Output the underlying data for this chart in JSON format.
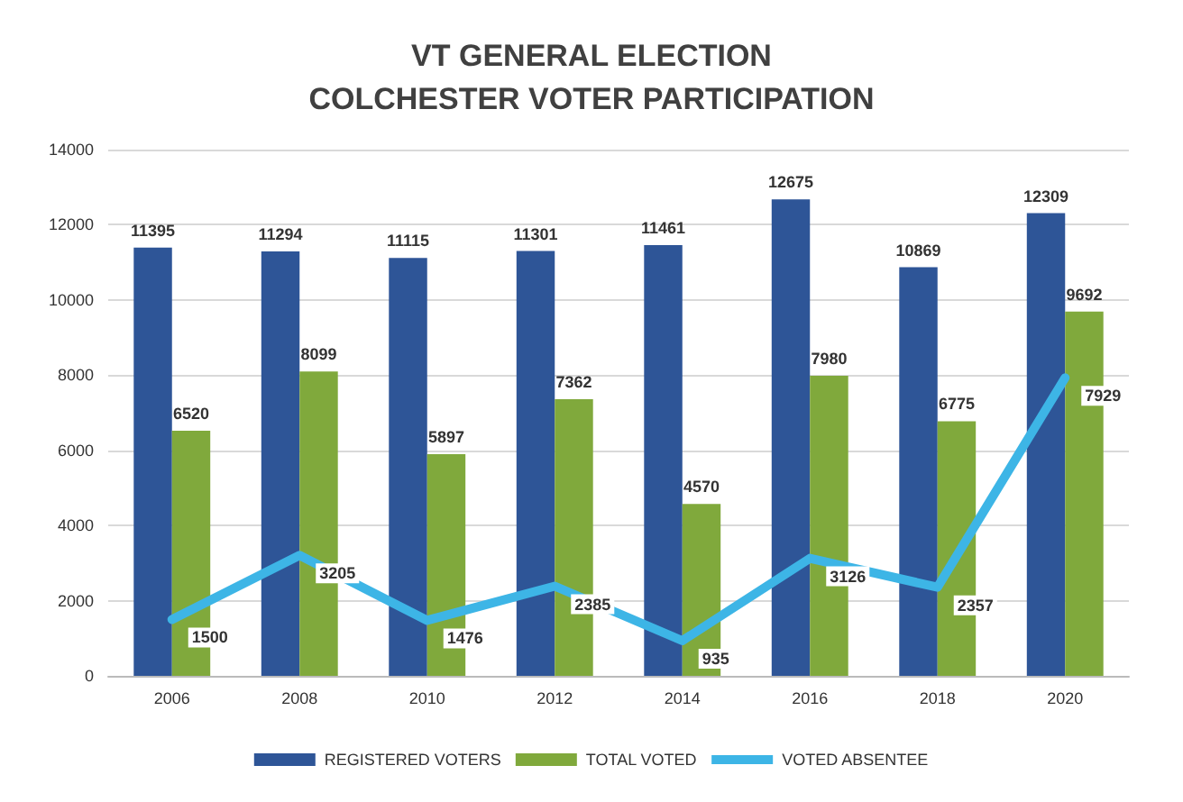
{
  "chart_data": {
    "type": "bar",
    "title": "VT GENERAL ELECTION\nCOLCHESTER VOTER PARTICIPATION",
    "categories": [
      "2006",
      "2008",
      "2010",
      "2012",
      "2014",
      "2016",
      "2018",
      "2020"
    ],
    "series": [
      {
        "name": "REGISTERED VOTERS",
        "color": "#2e5597",
        "values": [
          11395,
          11294,
          11115,
          11301,
          11461,
          12675,
          10869,
          12309
        ]
      },
      {
        "name": "TOTAL VOTED",
        "color": "#80a93c",
        "values": [
          6520,
          8099,
          5897,
          7362,
          4570,
          7980,
          6775,
          9692
        ]
      },
      {
        "name": "VOTED ABSENTEE",
        "type": "line",
        "color": "#3db5e6",
        "values": [
          1500,
          3205,
          1476,
          2385,
          935,
          3126,
          2357,
          7929
        ]
      }
    ],
    "ylim": [
      0,
      14000
    ],
    "yticks": [
      0,
      2000,
      4000,
      6000,
      8000,
      10000,
      12000,
      14000
    ],
    "grid": "y",
    "legend": "bottom",
    "data_labels": true,
    "marker": "none"
  }
}
